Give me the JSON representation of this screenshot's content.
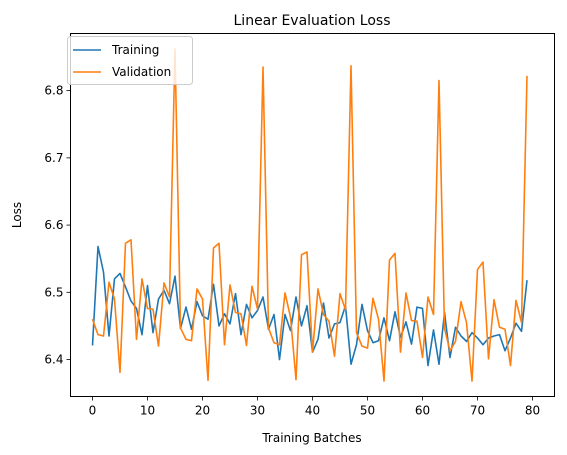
{
  "chart_data": {
    "type": "line",
    "title": "Linear Evaluation Loss",
    "xlabel": "Training Batches",
    "ylabel": "Loss",
    "xlim": [
      -4,
      84
    ],
    "ylim": [
      6.345,
      6.885
    ],
    "xticks": [
      0,
      10,
      20,
      30,
      40,
      50,
      60,
      70,
      80
    ],
    "yticks": [
      6.4,
      6.5,
      6.6,
      6.7,
      6.8
    ],
    "grid": false,
    "legend_position": "top-left",
    "series": [
      {
        "name": "Training",
        "color": "#1f77b4",
        "x": [
          0,
          1,
          2,
          3,
          4,
          5,
          6,
          7,
          8,
          9,
          10,
          11,
          12,
          13,
          14,
          15,
          16,
          17,
          18,
          19,
          20,
          21,
          22,
          23,
          24,
          25,
          26,
          27,
          28,
          29,
          30,
          31,
          32,
          33,
          34,
          35,
          36,
          37,
          38,
          39,
          40,
          41,
          42,
          43,
          44,
          45,
          46,
          47,
          48,
          49,
          50,
          51,
          52,
          53,
          54,
          55,
          56,
          57,
          58,
          59,
          60,
          61,
          62,
          63,
          64,
          65,
          66,
          67,
          68,
          69,
          70,
          71,
          72,
          73,
          74,
          75,
          76,
          77,
          78,
          79
        ],
        "values": [
          6.421,
          6.568,
          6.53,
          6.435,
          6.52,
          6.528,
          6.508,
          6.487,
          6.476,
          6.437,
          6.51,
          6.44,
          6.49,
          6.503,
          6.483,
          6.524,
          6.446,
          6.478,
          6.445,
          6.486,
          6.465,
          6.46,
          6.512,
          6.45,
          6.468,
          6.453,
          6.498,
          6.437,
          6.482,
          6.462,
          6.473,
          6.493,
          6.445,
          6.467,
          6.4,
          6.467,
          6.443,
          6.493,
          6.45,
          6.48,
          6.411,
          6.43,
          6.484,
          6.432,
          6.453,
          6.455,
          6.48,
          6.393,
          6.422,
          6.482,
          6.443,
          6.425,
          6.428,
          6.462,
          6.428,
          6.471,
          6.433,
          6.456,
          6.423,
          6.478,
          6.476,
          6.391,
          6.444,
          6.393,
          6.47,
          6.403,
          6.448,
          6.435,
          6.427,
          6.44,
          6.432,
          6.422,
          6.432,
          6.435,
          6.437,
          6.413,
          6.432,
          6.454,
          6.442,
          6.518
        ]
      },
      {
        "name": "Validation",
        "color": "#ff7f0e",
        "x": [
          0,
          1,
          2,
          3,
          4,
          5,
          6,
          7,
          8,
          9,
          10,
          11,
          12,
          13,
          14,
          15,
          16,
          17,
          18,
          19,
          20,
          21,
          22,
          23,
          24,
          25,
          26,
          27,
          28,
          29,
          30,
          31,
          32,
          33,
          34,
          35,
          36,
          37,
          38,
          39,
          40,
          41,
          42,
          43,
          44,
          45,
          46,
          47,
          48,
          49,
          50,
          51,
          52,
          53,
          54,
          55,
          56,
          57,
          58,
          59,
          60,
          61,
          62,
          63,
          64,
          65,
          66,
          67,
          68,
          69,
          70,
          71,
          72,
          73,
          74,
          75,
          76,
          77,
          78,
          79
        ],
        "values": [
          6.46,
          6.437,
          6.435,
          6.515,
          6.49,
          6.381,
          6.573,
          6.578,
          6.43,
          6.52,
          6.476,
          6.475,
          6.42,
          6.514,
          6.493,
          6.862,
          6.447,
          6.43,
          6.428,
          6.505,
          6.49,
          6.369,
          6.566,
          6.573,
          6.422,
          6.511,
          6.47,
          6.468,
          6.421,
          6.509,
          6.475,
          6.835,
          6.447,
          6.425,
          6.422,
          6.499,
          6.463,
          6.37,
          6.556,
          6.56,
          6.411,
          6.505,
          6.467,
          6.457,
          6.405,
          6.498,
          6.474,
          6.837,
          6.44,
          6.42,
          6.417,
          6.491,
          6.46,
          6.368,
          6.548,
          6.558,
          6.411,
          6.499,
          6.458,
          6.457,
          6.403,
          6.493,
          6.467,
          6.815,
          6.446,
          6.413,
          6.427,
          6.486,
          6.455,
          6.368,
          6.534,
          6.545,
          6.401,
          6.489,
          6.448,
          6.445,
          6.391,
          6.488,
          6.455,
          6.822
        ]
      }
    ]
  }
}
